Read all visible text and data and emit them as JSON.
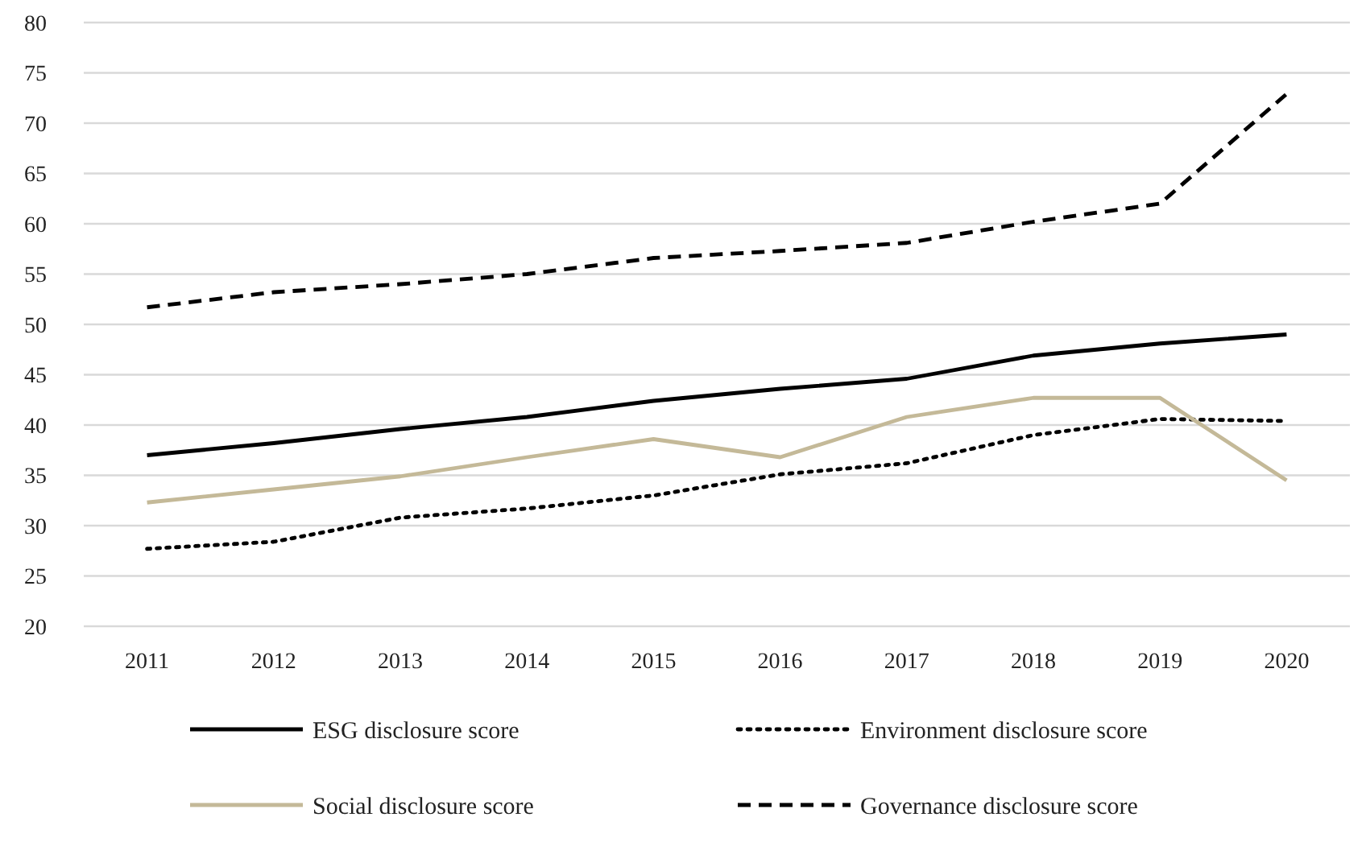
{
  "chart_data": {
    "type": "line",
    "categories": [
      "2011",
      "2012",
      "2013",
      "2014",
      "2015",
      "2016",
      "2017",
      "2018",
      "2019",
      "2020"
    ],
    "series": [
      {
        "name": "ESG disclosure score",
        "color": "#000000",
        "line_style": "solid",
        "values": [
          37,
          38.2,
          39.6,
          40.8,
          42.4,
          43.6,
          44.6,
          46.9,
          48.1,
          49.0
        ]
      },
      {
        "name": "Environment disclosure score",
        "color": "#000000",
        "line_style": "dotted",
        "values": [
          27.7,
          28.4,
          30.8,
          31.7,
          33.0,
          35.1,
          36.2,
          39.0,
          40.6,
          40.4
        ]
      },
      {
        "name": "Social disclosure score",
        "color": "#c4b998",
        "line_style": "solid",
        "values": [
          32.3,
          33.6,
          34.9,
          36.8,
          38.6,
          36.8,
          40.8,
          42.7,
          42.7,
          34.5
        ]
      },
      {
        "name": "Governance disclosure score",
        "color": "#000000",
        "line_style": "dashed",
        "values": [
          51.7,
          53.2,
          54.0,
          55.0,
          56.6,
          57.3,
          58.1,
          60.2,
          62.0,
          72.9
        ]
      }
    ],
    "ylim": [
      20,
      80
    ],
    "yticks": [
      20,
      25,
      30,
      35,
      40,
      45,
      50,
      55,
      60,
      65,
      70,
      75,
      80
    ],
    "grid": "y",
    "legend": "bottom"
  }
}
